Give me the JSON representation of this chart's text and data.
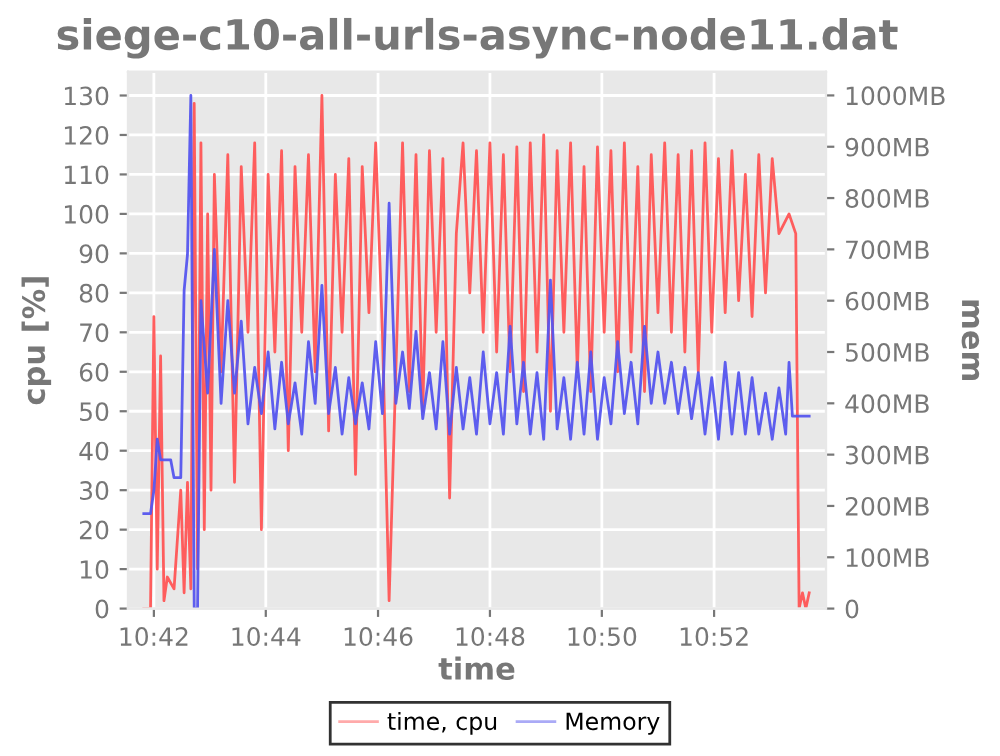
{
  "chart_data": {
    "type": "line",
    "title": "siege-c10-all-urls-async-node11.dat",
    "xlabel": "time",
    "ylabel": "cpu [%]",
    "y2label": "mem",
    "xlim": [
      10.6923,
      10.9
    ],
    "xticks": [
      {
        "value": 10.7,
        "label": "10:42"
      },
      {
        "value": 10.7333,
        "label": "10:44"
      },
      {
        "value": 10.7667,
        "label": "10:46"
      },
      {
        "value": 10.8,
        "label": "10:48"
      },
      {
        "value": 10.8333,
        "label": "10:50"
      },
      {
        "value": 10.8667,
        "label": "10:52"
      }
    ],
    "ylim": [
      0,
      136
    ],
    "yticks": [
      0,
      10,
      20,
      30,
      40,
      50,
      60,
      70,
      80,
      90,
      100,
      110,
      120,
      130
    ],
    "y2lim": [
      0,
      1046
    ],
    "y2ticks": [
      0,
      {
        "value": 100,
        "label": "100MB"
      },
      {
        "value": 200,
        "label": "200MB"
      },
      {
        "value": 300,
        "label": "300MB"
      },
      {
        "value": 400,
        "label": "400MB"
      },
      {
        "value": 500,
        "label": "500MB"
      },
      {
        "value": 600,
        "label": "600MB"
      },
      {
        "value": 700,
        "label": "700MB"
      },
      {
        "value": 800,
        "label": "800MB"
      },
      {
        "value": 900,
        "label": "900MB"
      },
      {
        "value": 1000,
        "label": "1000MB"
      }
    ],
    "grid": true,
    "legend": "bottom",
    "line_style": "solid",
    "series": [
      {
        "name": "time, cpu",
        "color": "#ff5555",
        "x": [
          10.697,
          10.699,
          10.7,
          10.701,
          10.702,
          10.703,
          10.704,
          10.706,
          10.708,
          10.709,
          10.71,
          10.711,
          10.712,
          10.713,
          10.714,
          10.715,
          10.716,
          10.717,
          10.718,
          10.72,
          10.722,
          10.724,
          10.726,
          10.728,
          10.73,
          10.732,
          10.734,
          10.736,
          10.738,
          10.74,
          10.742,
          10.744,
          10.746,
          10.748,
          10.75,
          10.752,
          10.754,
          10.756,
          10.758,
          10.76,
          10.762,
          10.764,
          10.766,
          10.768,
          10.77,
          10.772,
          10.774,
          10.776,
          10.778,
          10.78,
          10.782,
          10.784,
          10.786,
          10.788,
          10.79,
          10.792,
          10.794,
          10.796,
          10.798,
          10.8,
          10.802,
          10.804,
          10.806,
          10.808,
          10.81,
          10.812,
          10.814,
          10.816,
          10.818,
          10.82,
          10.822,
          10.824,
          10.826,
          10.828,
          10.83,
          10.832,
          10.834,
          10.836,
          10.838,
          10.84,
          10.842,
          10.844,
          10.846,
          10.848,
          10.85,
          10.852,
          10.854,
          10.856,
          10.858,
          10.86,
          10.862,
          10.864,
          10.866,
          10.868,
          10.87,
          10.872,
          10.874,
          10.876,
          10.878,
          10.88,
          10.882,
          10.884,
          10.886,
          10.889,
          10.891,
          10.892,
          10.893,
          10.894,
          10.895
        ],
        "values": [
          0,
          0,
          74,
          10,
          64,
          2,
          8,
          5,
          30,
          4,
          32,
          5,
          128,
          10,
          118,
          20,
          100,
          30,
          110,
          60,
          115,
          32,
          112,
          70,
          118,
          20,
          110,
          65,
          116,
          40,
          112,
          70,
          115,
          60,
          130,
          45,
          110,
          70,
          114,
          34,
          112,
          75,
          118,
          70,
          2,
          60,
          118,
          55,
          115,
          50,
          116,
          70,
          114,
          28,
          95,
          118,
          80,
          116,
          70,
          118,
          65,
          115,
          60,
          117,
          55,
          118,
          65,
          120,
          50,
          116,
          70,
          118,
          60,
          112,
          55,
          117,
          70,
          116,
          60,
          118,
          65,
          112,
          55,
          115,
          75,
          118,
          70,
          115,
          65,
          116,
          60,
          118,
          70,
          114,
          75,
          116,
          78,
          110,
          74,
          115,
          80,
          114,
          95,
          100,
          95,
          0,
          4,
          0,
          4
        ]
      },
      {
        "name": "Memory",
        "color": "#5555ee",
        "axis": "y2",
        "x": [
          10.697,
          10.699,
          10.7,
          10.701,
          10.702,
          10.705,
          10.706,
          10.708,
          10.709,
          10.71,
          10.711,
          10.712,
          10.713,
          10.714,
          10.716,
          10.718,
          10.72,
          10.722,
          10.724,
          10.726,
          10.728,
          10.73,
          10.732,
          10.734,
          10.736,
          10.738,
          10.74,
          10.742,
          10.744,
          10.746,
          10.748,
          10.75,
          10.752,
          10.754,
          10.756,
          10.758,
          10.76,
          10.762,
          10.764,
          10.766,
          10.768,
          10.77,
          10.772,
          10.774,
          10.776,
          10.778,
          10.78,
          10.782,
          10.784,
          10.786,
          10.788,
          10.79,
          10.792,
          10.794,
          10.796,
          10.798,
          10.8,
          10.802,
          10.804,
          10.806,
          10.808,
          10.81,
          10.812,
          10.814,
          10.816,
          10.818,
          10.82,
          10.822,
          10.824,
          10.826,
          10.828,
          10.83,
          10.832,
          10.834,
          10.836,
          10.838,
          10.84,
          10.842,
          10.844,
          10.846,
          10.848,
          10.85,
          10.852,
          10.854,
          10.856,
          10.858,
          10.86,
          10.862,
          10.864,
          10.866,
          10.868,
          10.87,
          10.872,
          10.874,
          10.876,
          10.878,
          10.88,
          10.882,
          10.884,
          10.886,
          10.888,
          10.889,
          10.89,
          10.895
        ],
        "values": [
          185,
          185,
          230,
          330,
          290,
          290,
          255,
          255,
          620,
          690,
          1000,
          0,
          0,
          600,
          420,
          700,
          400,
          600,
          420,
          560,
          360,
          470,
          380,
          500,
          350,
          480,
          360,
          440,
          340,
          520,
          400,
          630,
          380,
          470,
          340,
          450,
          360,
          440,
          350,
          520,
          380,
          790,
          400,
          500,
          390,
          540,
          370,
          460,
          350,
          520,
          340,
          470,
          350,
          450,
          340,
          500,
          360,
          460,
          340,
          550,
          360,
          480,
          340,
          460,
          330,
          640,
          350,
          450,
          330,
          480,
          340,
          500,
          330,
          450,
          360,
          520,
          380,
          480,
          360,
          550,
          400,
          500,
          400,
          480,
          380,
          470,
          370,
          460,
          340,
          450,
          330,
          480,
          340,
          460,
          340,
          450,
          340,
          420,
          330,
          430,
          340,
          480,
          375,
          375
        ]
      }
    ]
  }
}
